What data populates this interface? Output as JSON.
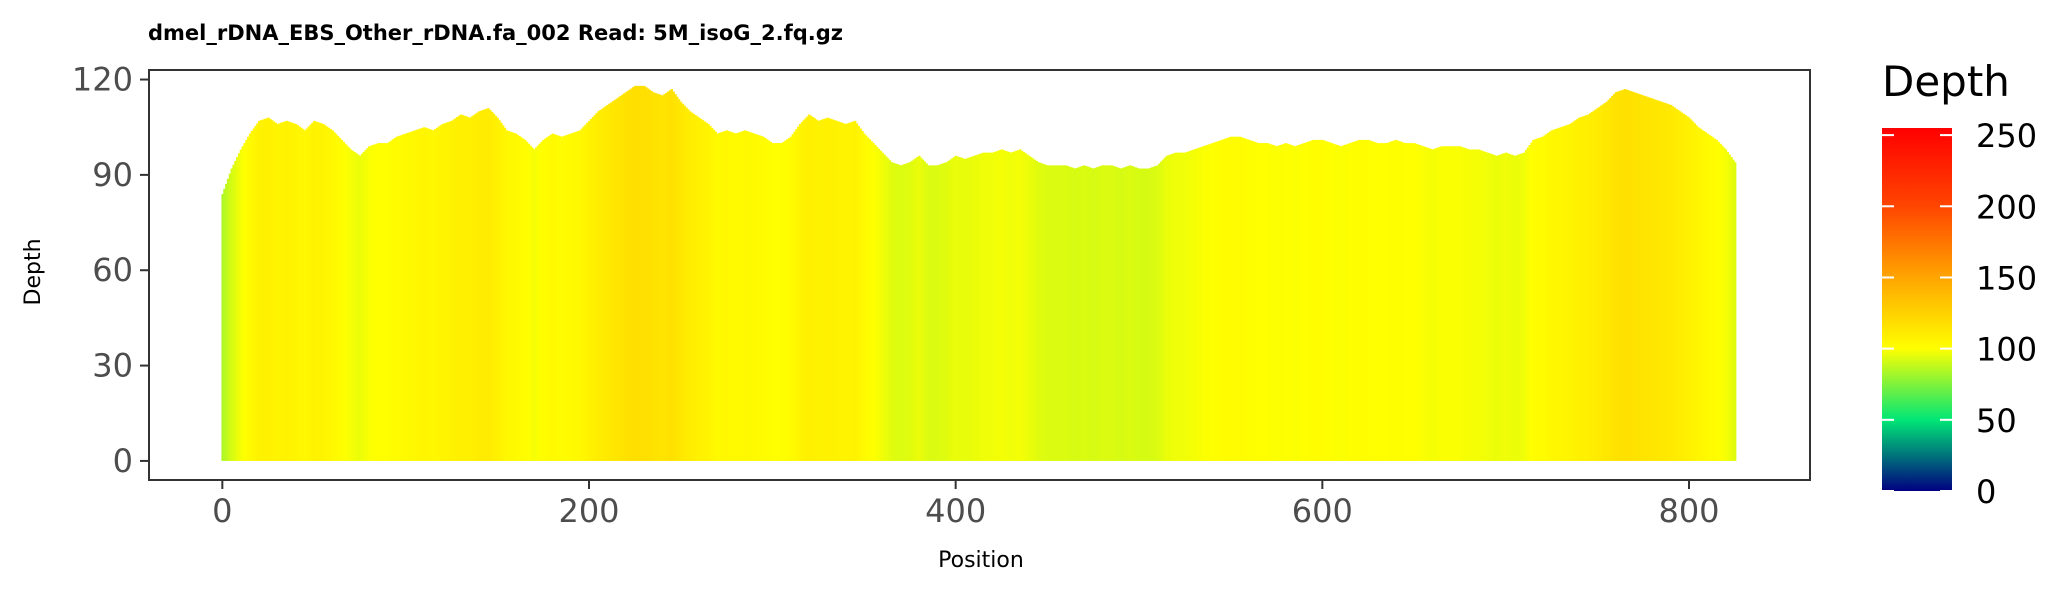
{
  "chart_data": {
    "type": "bar",
    "title": "dmel_rDNA_EBS_Other_rDNA.fa_002   Read: 5M_isoG_2.fq.gz",
    "xlabel": "Position",
    "ylabel": "Depth",
    "xlim": [
      -40,
      866
    ],
    "ylim": [
      -6,
      123
    ],
    "x_ticks": [
      0,
      200,
      400,
      600,
      800
    ],
    "y_ticks": [
      0,
      30,
      60,
      90,
      120
    ],
    "x_tick_labels": [
      "0",
      "200",
      "400",
      "600",
      "800"
    ],
    "y_tick_labels": [
      "0",
      "30",
      "60",
      "90",
      "120"
    ],
    "x_range": [
      0,
      825
    ],
    "profile_anchors": {
      "x": [
        0,
        5,
        10,
        15,
        20,
        25,
        30,
        35,
        40,
        45,
        50,
        55,
        60,
        65,
        70,
        75,
        80,
        85,
        90,
        95,
        100,
        105,
        110,
        115,
        120,
        125,
        130,
        135,
        140,
        145,
        150,
        155,
        160,
        165,
        170,
        175,
        180,
        185,
        190,
        195,
        200,
        205,
        210,
        215,
        220,
        225,
        230,
        235,
        240,
        245,
        250,
        255,
        260,
        265,
        270,
        275,
        280,
        285,
        290,
        295,
        300,
        305,
        310,
        315,
        320,
        325,
        330,
        335,
        340,
        345,
        350,
        355,
        360,
        365,
        370,
        375,
        380,
        385,
        390,
        395,
        400,
        405,
        410,
        415,
        420,
        425,
        430,
        435,
        440,
        445,
        450,
        455,
        460,
        465,
        470,
        475,
        480,
        485,
        490,
        495,
        500,
        505,
        510,
        515,
        520,
        525,
        530,
        535,
        540,
        545,
        550,
        555,
        560,
        565,
        570,
        575,
        580,
        585,
        590,
        595,
        600,
        605,
        610,
        615,
        620,
        625,
        630,
        635,
        640,
        645,
        650,
        655,
        660,
        665,
        670,
        675,
        680,
        685,
        690,
        695,
        700,
        705,
        710,
        715,
        720,
        725,
        730,
        735,
        740,
        745,
        750,
        755,
        760,
        765,
        770,
        775,
        780,
        785,
        790,
        795,
        800,
        805,
        810,
        815,
        820,
        825
      ],
      "depth": [
        84,
        92,
        98,
        103,
        107,
        108,
        106,
        107,
        106,
        104,
        107,
        106,
        104,
        101,
        98,
        96,
        99,
        100,
        100,
        102,
        103,
        104,
        105,
        104,
        106,
        107,
        109,
        108,
        110,
        111,
        108,
        104,
        103,
        101,
        98,
        101,
        103,
        102,
        103,
        104,
        107,
        110,
        112,
        114,
        116,
        118,
        118,
        116,
        115,
        117,
        113,
        110,
        108,
        106,
        103,
        104,
        103,
        104,
        103,
        102,
        100,
        100,
        102,
        106,
        109,
        107,
        108,
        107,
        106,
        107,
        103,
        100,
        97,
        94,
        93,
        94,
        96,
        93,
        93,
        94,
        96,
        95,
        96,
        97,
        97,
        98,
        97,
        98,
        96,
        94,
        93,
        93,
        93,
        92,
        93,
        92,
        93,
        93,
        92,
        93,
        92,
        92,
        93,
        96,
        97,
        97,
        98,
        99,
        100,
        101,
        102,
        102,
        101,
        100,
        100,
        99,
        100,
        99,
        100,
        101,
        101,
        100,
        99,
        100,
        101,
        101,
        100,
        100,
        101,
        100,
        100,
        99,
        98,
        99,
        99,
        99,
        98,
        98,
        97,
        96,
        97,
        96,
        97,
        101,
        102,
        104,
        105,
        106,
        108,
        109,
        111,
        113,
        116,
        117,
        116,
        115,
        114,
        113,
        112,
        110,
        108,
        105,
        103,
        101,
        98,
        94
      ]
    },
    "legend": {
      "title": "Depth",
      "position": "right",
      "limits": [
        0,
        255
      ],
      "ticks": [
        0,
        50,
        100,
        150,
        200,
        250
      ],
      "tick_labels": [
        "0",
        "50",
        "100",
        "150",
        "200",
        "250"
      ]
    },
    "color_scale": {
      "stops": [
        0,
        50,
        100,
        150,
        200,
        255
      ],
      "colors": [
        "#000080",
        "#00e676",
        "#ffff00",
        "#ffa500",
        "#ff4500",
        "#ff0000"
      ]
    },
    "grid": false,
    "panel_border": true,
    "background": "#ffffff"
  }
}
